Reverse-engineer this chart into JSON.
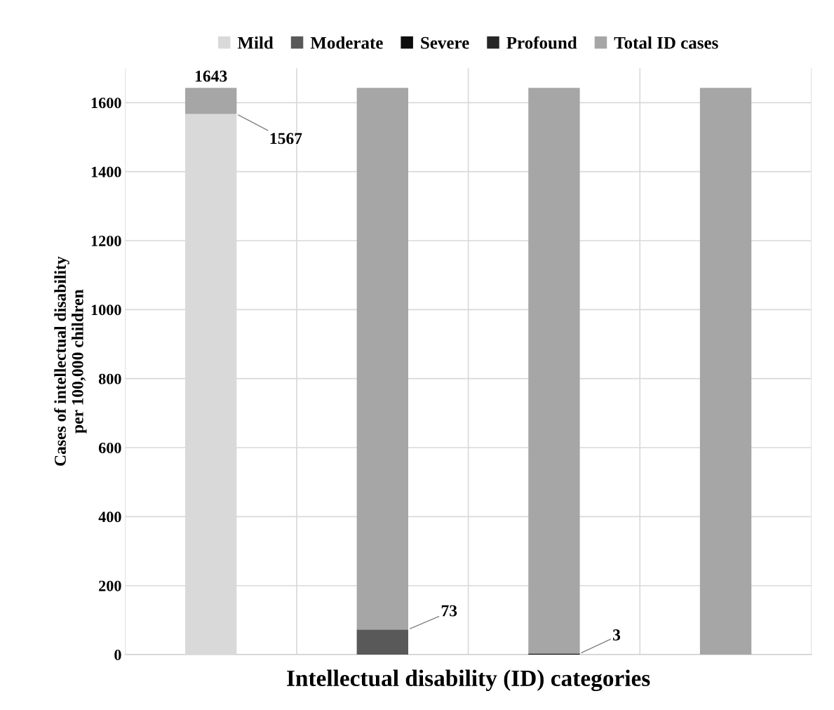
{
  "chart_data": {
    "type": "bar",
    "stacked": true,
    "xlabel": "Intellectual disability (ID) categories",
    "ylabel": "Cases of intellectual disability\nper 100,000 children",
    "categories": [
      null,
      null,
      null,
      null
    ],
    "series": [
      {
        "name": "Mild",
        "color": "#d9d9d9",
        "values": [
          1567,
          null,
          null,
          null
        ],
        "value_labels": [
          "1567",
          null,
          null,
          null
        ]
      },
      {
        "name": "Moderate",
        "color": "#595959",
        "values": [
          null,
          73,
          null,
          null
        ],
        "value_labels": [
          null,
          "73",
          null,
          null
        ]
      },
      {
        "name": "Severe",
        "color": "#0d0d0d",
        "values": [
          null,
          null,
          3,
          null
        ],
        "value_labels": [
          null,
          null,
          "3",
          null
        ]
      },
      {
        "name": "Profound",
        "color": "#262626",
        "values": [
          null,
          null,
          null,
          0
        ]
      },
      {
        "name": "Total ID cases",
        "color": "#a6a6a6",
        "values": [
          76,
          1570,
          1640,
          1643
        ]
      }
    ],
    "totals": [
      "1643",
      null,
      null,
      null
    ],
    "ylim": [
      0,
      1700
    ],
    "yticks": [
      0,
      200,
      400,
      600,
      800,
      1000,
      1200,
      1400,
      1600
    ],
    "grid": true,
    "legend": "top"
  }
}
